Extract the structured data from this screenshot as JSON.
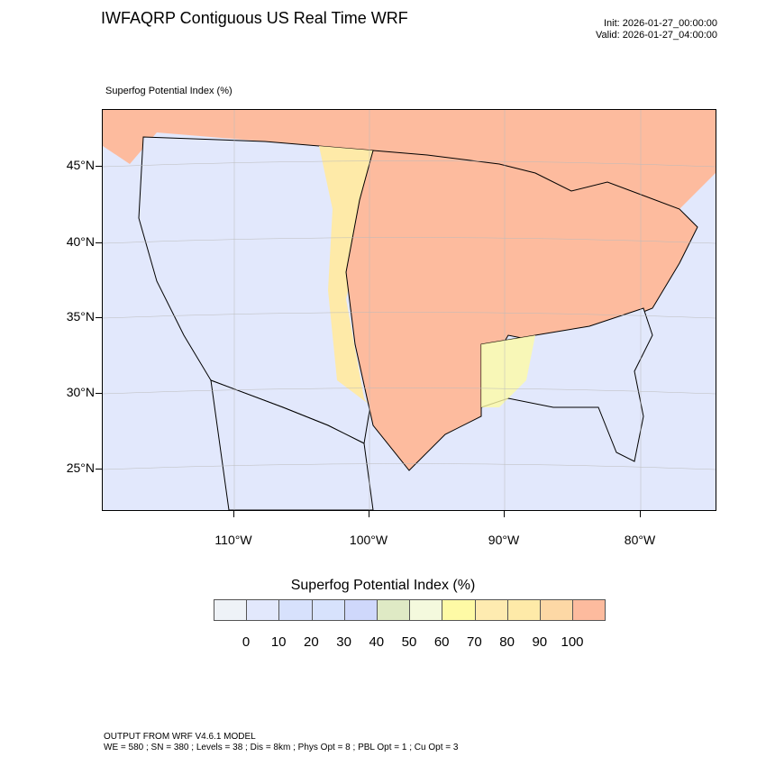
{
  "header": {
    "title": "IWFAQRP Contiguous US Real Time WRF",
    "init": "Init: 2026-01-27_00:00:00",
    "valid": "Valid: 2026-01-27_04:00:00"
  },
  "map": {
    "field_label": "Superfog Potential Index   (%)",
    "lat_labels": [
      "45°N",
      "40°N",
      "35°N",
      "30°N",
      "25°N"
    ],
    "lon_labels": [
      "110°W",
      "100°W",
      "90°W",
      "80°W"
    ]
  },
  "colorbar": {
    "title": "Superfog Potential Index  (%)",
    "labels": [
      "0",
      "10",
      "20",
      "30",
      "40",
      "50",
      "60",
      "70",
      "80",
      "90",
      "100"
    ],
    "colors": [
      "#eef2f7",
      "#e2e8fc",
      "#d7e1fc",
      "#d7e2fc",
      "#cfd8fb",
      "#dfeac5",
      "#f4f9dd",
      "#fefaa5",
      "#feebb0",
      "#feeaa8",
      "#fdd8a5",
      "#fdbb9e"
    ]
  },
  "footer": {
    "line1": "OUTPUT FROM WRF V4.6.1 MODEL",
    "line2": "WE = 580 ; SN = 380 ; Levels = 38 ; Dis = 8km ; Phys Opt = 8 ; PBL Opt = 1 ; Cu Opt = 3"
  }
}
